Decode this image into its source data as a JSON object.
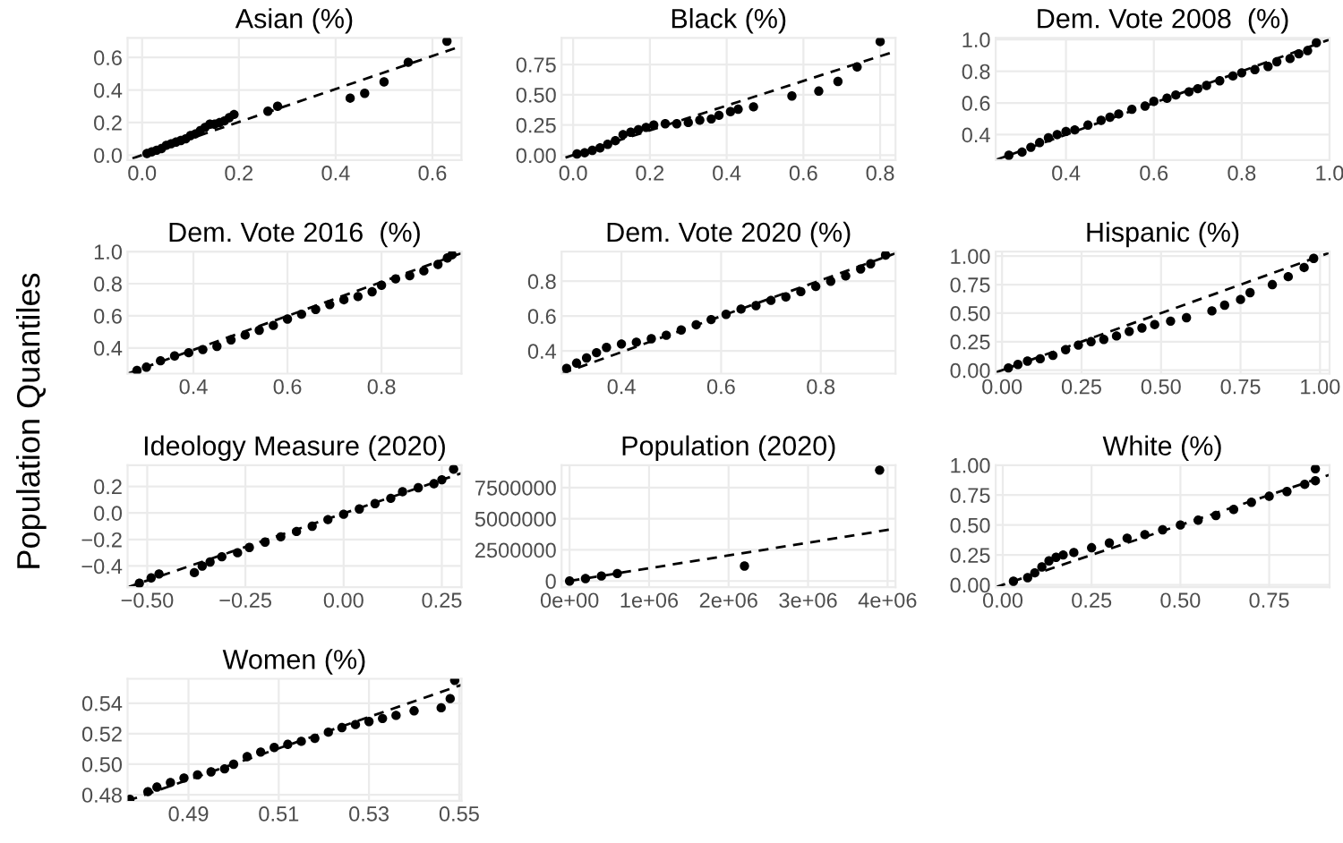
{
  "chart_data": [
    {
      "type": "scatter",
      "title": "Asian (%)",
      "xlim": [
        -0.03,
        0.66
      ],
      "ylim": [
        -0.03,
        0.72
      ],
      "xticks": [
        {
          "value": 0,
          "label": "0.0"
        },
        0.2,
        0.4,
        0.6
      ],
      "yticks": [
        {
          "value": 0,
          "label": "0.0"
        },
        0.2,
        0.4,
        0.6
      ],
      "grid": true,
      "series": [
        {
          "type": "scatter",
          "color": "#000000",
          "marker": "circle",
          "x": [
            0.01,
            0.02,
            0.03,
            0.04,
            0.05,
            0.06,
            0.07,
            0.08,
            0.09,
            0.1,
            0.11,
            0.12,
            0.13,
            0.14,
            0.15,
            0.16,
            0.17,
            0.18,
            0.19,
            0.26,
            0.28,
            0.43,
            0.46,
            0.5,
            0.55,
            0.63
          ],
          "values": [
            0.01,
            0.02,
            0.03,
            0.04,
            0.06,
            0.07,
            0.08,
            0.09,
            0.1,
            0.12,
            0.13,
            0.15,
            0.17,
            0.19,
            0.19,
            0.2,
            0.21,
            0.23,
            0.25,
            0.27,
            0.3,
            0.35,
            0.38,
            0.45,
            0.57,
            0.7
          ]
        },
        {
          "type": "line",
          "color": "#000000",
          "line_style": "dashed",
          "x": [
            -0.02,
            0.66
          ],
          "values": [
            -0.02,
            0.67
          ]
        }
      ]
    },
    {
      "type": "scatter",
      "title": "Black (%)",
      "xlim": [
        -0.03,
        0.84
      ],
      "ylim": [
        -0.04,
        0.97
      ],
      "xticks": [
        {
          "value": 0,
          "label": "0.0"
        },
        0.2,
        0.4,
        0.6,
        0.8
      ],
      "yticks": [
        {
          "value": 0,
          "label": "0.00"
        },
        0.25,
        {
          "value": 0.5,
          "label": "0.50"
        },
        0.75
      ],
      "grid": true,
      "series": [
        {
          "type": "scatter",
          "color": "#000000",
          "marker": "circle",
          "x": [
            0.01,
            0.03,
            0.05,
            0.07,
            0.09,
            0.11,
            0.13,
            0.15,
            0.17,
            0.19,
            0.21,
            0.24,
            0.27,
            0.3,
            0.33,
            0.36,
            0.38,
            0.41,
            0.43,
            0.47,
            0.57,
            0.64,
            0.69,
            0.74,
            0.8
          ],
          "values": [
            0.01,
            0.02,
            0.04,
            0.06,
            0.09,
            0.12,
            0.17,
            0.19,
            0.21,
            0.23,
            0.25,
            0.26,
            0.26,
            0.27,
            0.29,
            0.3,
            0.33,
            0.36,
            0.38,
            0.4,
            0.49,
            0.53,
            0.61,
            0.73,
            0.94
          ]
        },
        {
          "type": "line",
          "color": "#000000",
          "line_style": "dashed",
          "x": [
            -0.02,
            0.84
          ],
          "values": [
            -0.02,
            0.86
          ]
        }
      ]
    },
    {
      "type": "scatter",
      "title": "Dem. Vote 2008  (%)",
      "xlim": [
        0.24,
        1.0
      ],
      "ylim": [
        0.24,
        1.01
      ],
      "xticks": [
        0.4,
        0.6,
        0.8,
        {
          "value": 1.0,
          "label": "1.0"
        }
      ],
      "yticks": [
        0.4,
        0.6,
        0.8,
        {
          "value": 1.0,
          "label": "1.0"
        }
      ],
      "grid": true,
      "series": [
        {
          "type": "scatter",
          "color": "#000000",
          "marker": "circle",
          "x": [
            0.27,
            0.3,
            0.32,
            0.34,
            0.36,
            0.38,
            0.4,
            0.42,
            0.45,
            0.48,
            0.5,
            0.52,
            0.55,
            0.58,
            0.6,
            0.63,
            0.65,
            0.68,
            0.7,
            0.72,
            0.75,
            0.78,
            0.8,
            0.83,
            0.86,
            0.88,
            0.91,
            0.93,
            0.95,
            0.97
          ],
          "values": [
            0.27,
            0.29,
            0.32,
            0.35,
            0.38,
            0.4,
            0.42,
            0.43,
            0.46,
            0.49,
            0.51,
            0.53,
            0.56,
            0.58,
            0.61,
            0.63,
            0.65,
            0.67,
            0.69,
            0.71,
            0.74,
            0.77,
            0.79,
            0.81,
            0.83,
            0.86,
            0.88,
            0.91,
            0.93,
            0.98
          ]
        },
        {
          "type": "line",
          "color": "#000000",
          "line_style": "dashed",
          "x": [
            0.24,
            1.0
          ],
          "values": [
            0.24,
            1.0
          ]
        }
      ]
    },
    {
      "type": "scatter",
      "title": "Dem. Vote 2016  (%)",
      "xlim": [
        0.26,
        0.97
      ],
      "ylim": [
        0.24,
        1.0
      ],
      "xticks": [
        0.4,
        0.6,
        0.8
      ],
      "yticks": [
        0.4,
        0.6,
        0.8,
        {
          "value": 1.0,
          "label": "1.0"
        }
      ],
      "grid": true,
      "series": [
        {
          "type": "scatter",
          "color": "#000000",
          "marker": "circle",
          "x": [
            0.28,
            0.3,
            0.33,
            0.36,
            0.39,
            0.42,
            0.45,
            0.48,
            0.51,
            0.54,
            0.57,
            0.6,
            0.63,
            0.66,
            0.69,
            0.72,
            0.75,
            0.78,
            0.8,
            0.83,
            0.86,
            0.89,
            0.92,
            0.94,
            0.95
          ],
          "values": [
            0.26,
            0.28,
            0.32,
            0.35,
            0.37,
            0.39,
            0.41,
            0.45,
            0.48,
            0.51,
            0.54,
            0.58,
            0.61,
            0.64,
            0.67,
            0.7,
            0.72,
            0.75,
            0.79,
            0.83,
            0.85,
            0.88,
            0.92,
            0.96,
            0.98
          ]
        },
        {
          "type": "line",
          "color": "#000000",
          "line_style": "dashed",
          "x": [
            0.26,
            0.97
          ],
          "values": [
            0.24,
            0.99
          ]
        }
      ]
    },
    {
      "type": "scatter",
      "title": "Dem. Vote 2020 (%)",
      "xlim": [
        0.28,
        0.95
      ],
      "ylim": [
        0.27,
        0.97
      ],
      "xticks": [
        0.4,
        0.6,
        0.8
      ],
      "yticks": [
        0.4,
        0.6,
        0.8
      ],
      "grid": true,
      "series": [
        {
          "type": "scatter",
          "color": "#000000",
          "marker": "circle",
          "x": [
            0.29,
            0.31,
            0.33,
            0.35,
            0.37,
            0.4,
            0.43,
            0.46,
            0.49,
            0.52,
            0.55,
            0.58,
            0.61,
            0.64,
            0.67,
            0.7,
            0.73,
            0.76,
            0.79,
            0.82,
            0.85,
            0.88,
            0.9,
            0.93
          ],
          "values": [
            0.3,
            0.33,
            0.36,
            0.39,
            0.42,
            0.44,
            0.45,
            0.47,
            0.49,
            0.52,
            0.55,
            0.58,
            0.61,
            0.64,
            0.66,
            0.69,
            0.71,
            0.74,
            0.77,
            0.8,
            0.83,
            0.87,
            0.9,
            0.95
          ]
        },
        {
          "type": "line",
          "color": "#000000",
          "line_style": "dashed",
          "x": [
            0.28,
            0.95
          ],
          "values": [
            0.27,
            0.96
          ]
        }
      ]
    },
    {
      "type": "scatter",
      "title": "Hispanic (%)",
      "xlim": [
        -0.02,
        1.03
      ],
      "ylim": [
        -0.03,
        1.04
      ],
      "xticks": [
        {
          "value": 0,
          "label": "0.00"
        },
        0.25,
        {
          "value": 0.5,
          "label": "0.50"
        },
        0.75,
        {
          "value": 1.0,
          "label": "1.00"
        }
      ],
      "yticks": [
        {
          "value": 0,
          "label": "0.00"
        },
        0.25,
        {
          "value": 0.5,
          "label": "0.50"
        },
        0.75,
        {
          "value": 1.0,
          "label": "1.00"
        }
      ],
      "grid": true,
      "series": [
        {
          "type": "scatter",
          "color": "#000000",
          "marker": "circle",
          "x": [
            0.02,
            0.05,
            0.08,
            0.12,
            0.16,
            0.2,
            0.24,
            0.28,
            0.32,
            0.36,
            0.4,
            0.44,
            0.48,
            0.53,
            0.58,
            0.66,
            0.7,
            0.75,
            0.78,
            0.85,
            0.9,
            0.95,
            0.98
          ],
          "values": [
            0.02,
            0.05,
            0.08,
            0.1,
            0.13,
            0.18,
            0.22,
            0.25,
            0.27,
            0.3,
            0.34,
            0.37,
            0.4,
            0.43,
            0.46,
            0.52,
            0.57,
            0.62,
            0.68,
            0.75,
            0.82,
            0.9,
            0.98
          ]
        },
        {
          "type": "line",
          "color": "#000000",
          "line_style": "dashed",
          "x": [
            -0.02,
            1.03
          ],
          "values": [
            -0.02,
            1.03
          ]
        }
      ]
    },
    {
      "type": "scatter",
      "title": "Ideology Measure (2020)",
      "ylabel": "Population Quantiles",
      "xlim": [
        -0.55,
        0.3
      ],
      "ylim": [
        -0.56,
        0.36
      ],
      "xticks": [
        {
          "value": -0.5,
          "label": "−0.50"
        },
        {
          "value": -0.25,
          "label": "−0.25"
        },
        {
          "value": 0,
          "label": "0.00"
        },
        0.25
      ],
      "yticks": [
        {
          "value": -0.4,
          "label": "−0.4"
        },
        {
          "value": -0.2,
          "label": "−0.2"
        },
        {
          "value": 0,
          "label": "0.0"
        },
        0.2
      ],
      "grid": true,
      "series": [
        {
          "type": "scatter",
          "color": "#000000",
          "marker": "circle",
          "x": [
            -0.52,
            -0.49,
            -0.47,
            -0.38,
            -0.36,
            -0.34,
            -0.31,
            -0.27,
            -0.24,
            -0.2,
            -0.16,
            -0.12,
            -0.08,
            -0.04,
            0.0,
            0.04,
            0.08,
            0.12,
            0.15,
            0.19,
            0.23,
            0.25,
            0.28
          ],
          "values": [
            -0.53,
            -0.49,
            -0.46,
            -0.45,
            -0.4,
            -0.37,
            -0.33,
            -0.3,
            -0.26,
            -0.22,
            -0.18,
            -0.14,
            -0.1,
            -0.05,
            -0.01,
            0.03,
            0.07,
            0.11,
            0.16,
            0.19,
            0.22,
            0.25,
            0.33
          ]
        },
        {
          "type": "line",
          "color": "#000000",
          "line_style": "dashed",
          "x": [
            -0.55,
            0.3
          ],
          "values": [
            -0.56,
            0.3
          ]
        }
      ]
    },
    {
      "type": "scatter",
      "title": "Population (2020)",
      "xlim": [
        -100000,
        4100000
      ],
      "ylim": [
        -500000,
        9300000
      ],
      "xticks": [
        {
          "value": 0,
          "label": "0e+00"
        },
        {
          "value": 1000000,
          "label": "1e+06"
        },
        {
          "value": 2000000,
          "label": "2e+06"
        },
        {
          "value": 3000000,
          "label": "3e+06"
        },
        {
          "value": 4000000,
          "label": "4e+06"
        }
      ],
      "yticks": [
        0,
        2500000,
        5000000,
        7500000
      ],
      "grid": true,
      "series": [
        {
          "type": "scatter",
          "color": "#000000",
          "marker": "circle",
          "x": [
            0,
            200000,
            400000,
            600000,
            2200000,
            3900000
          ],
          "values": [
            0,
            200000,
            400000,
            600000,
            1200000,
            8900000
          ]
        },
        {
          "type": "line",
          "color": "#000000",
          "line_style": "dashed",
          "x": [
            0,
            4100000
          ],
          "values": [
            0,
            4200000
          ]
        }
      ]
    },
    {
      "type": "scatter",
      "title": "White (%)",
      "xlim": [
        -0.02,
        0.92
      ],
      "ylim": [
        -0.02,
        1.0
      ],
      "xticks": [
        {
          "value": 0,
          "label": "0.00"
        },
        0.25,
        {
          "value": 0.5,
          "label": "0.50"
        },
        0.75
      ],
      "yticks": [
        {
          "value": 0,
          "label": "0.00"
        },
        0.25,
        {
          "value": 0.5,
          "label": "0.50"
        },
        0.75,
        {
          "value": 1.0,
          "label": "1.00"
        }
      ],
      "grid": true,
      "series": [
        {
          "type": "scatter",
          "color": "#000000",
          "marker": "circle",
          "x": [
            0.03,
            0.07,
            0.09,
            0.11,
            0.13,
            0.15,
            0.17,
            0.2,
            0.25,
            0.3,
            0.35,
            0.4,
            0.45,
            0.5,
            0.55,
            0.6,
            0.65,
            0.7,
            0.75,
            0.8,
            0.85,
            0.88,
            0.88
          ],
          "values": [
            0.03,
            0.06,
            0.1,
            0.15,
            0.2,
            0.23,
            0.25,
            0.27,
            0.31,
            0.35,
            0.39,
            0.42,
            0.46,
            0.5,
            0.54,
            0.58,
            0.63,
            0.69,
            0.74,
            0.78,
            0.84,
            0.87,
            0.97
          ]
        },
        {
          "type": "line",
          "color": "#000000",
          "line_style": "dashed",
          "x": [
            -0.02,
            0.92
          ],
          "values": [
            -0.02,
            0.92
          ]
        }
      ]
    },
    {
      "type": "scatter",
      "title": "Women (%)",
      "xlim": [
        0.4765,
        0.5505
      ],
      "ylim": [
        0.476,
        0.556
      ],
      "xticks": [
        0.49,
        0.51,
        0.53,
        0.55
      ],
      "yticks": [
        {
          "value": 0.48,
          "label": "0.48"
        },
        {
          "value": 0.5,
          "label": "0.50"
        },
        0.52,
        0.54
      ],
      "grid": true,
      "series": [
        {
          "type": "scatter",
          "color": "#000000",
          "marker": "circle",
          "x": [
            0.477,
            0.481,
            0.483,
            0.486,
            0.489,
            0.492,
            0.495,
            0.498,
            0.5,
            0.503,
            0.506,
            0.509,
            0.512,
            0.515,
            0.518,
            0.521,
            0.524,
            0.527,
            0.53,
            0.533,
            0.536,
            0.54,
            0.546,
            0.548,
            0.549
          ],
          "values": [
            0.477,
            0.482,
            0.485,
            0.488,
            0.491,
            0.493,
            0.495,
            0.497,
            0.5,
            0.505,
            0.508,
            0.511,
            0.513,
            0.515,
            0.517,
            0.521,
            0.524,
            0.526,
            0.528,
            0.53,
            0.532,
            0.535,
            0.537,
            0.543,
            0.555
          ]
        },
        {
          "type": "line",
          "color": "#000000",
          "line_style": "dashed",
          "x": [
            0.4765,
            0.5505
          ],
          "values": [
            0.476,
            0.552
          ]
        }
      ]
    }
  ]
}
